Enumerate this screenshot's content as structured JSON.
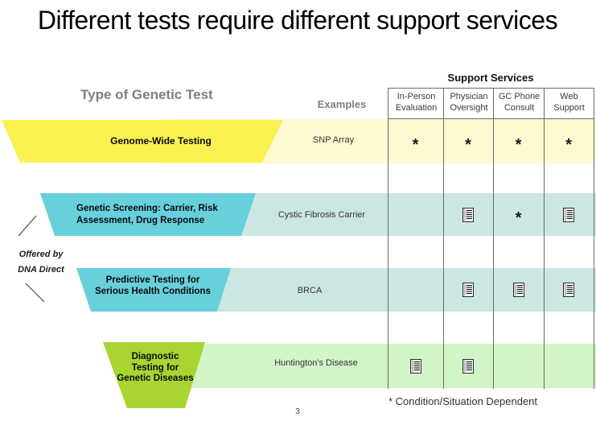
{
  "slide": {
    "title": "Different tests require different support services",
    "footnote": "* Condition/Situation Dependent",
    "page_number": "3"
  },
  "headers": {
    "type_col": "Type of Genetic Test",
    "examples_col": "Examples",
    "support_group": "Support Services",
    "support_cols": [
      "In-Person Evaluation",
      "Physician Oversight",
      "GC Phone Consult",
      "Web Support"
    ]
  },
  "offered_by": {
    "line1": "Offered by",
    "line2": "DNA Direct"
  },
  "rows": [
    {
      "test": "Genome-Wide Testing",
      "example": "SNP Array",
      "support": [
        "asterisk",
        "asterisk",
        "asterisk",
        "asterisk"
      ]
    },
    {
      "test": "Genetic Screening: Carrier, Risk Assessment, Drug Response",
      "example": "Cystic Fibrosis Carrier",
      "support": [
        "",
        "document",
        "asterisk",
        "document"
      ]
    },
    {
      "test": "Predictive Testing for Serious Health Conditions",
      "example": "BRCA",
      "support": [
        "",
        "document",
        "document",
        "document"
      ]
    },
    {
      "test": "Diagnostic Testing for Genetic Diseases",
      "example": "Huntington's Disease",
      "support": [
        "document",
        "document",
        "",
        ""
      ]
    }
  ],
  "symbols": {
    "asterisk": "*",
    "document_icon": "document-icon"
  },
  "colors": {
    "row_shapes": [
      "#FAF150",
      "#68CFDC",
      "#68CFDC",
      "#A8D531"
    ],
    "row_bands": [
      "#FCFAD1",
      "#CCE6E3",
      "#CCE6E3",
      "#D2F5C7"
    ],
    "grid_line": "#6B6B6B",
    "header_gray": "#7F7F7F"
  }
}
